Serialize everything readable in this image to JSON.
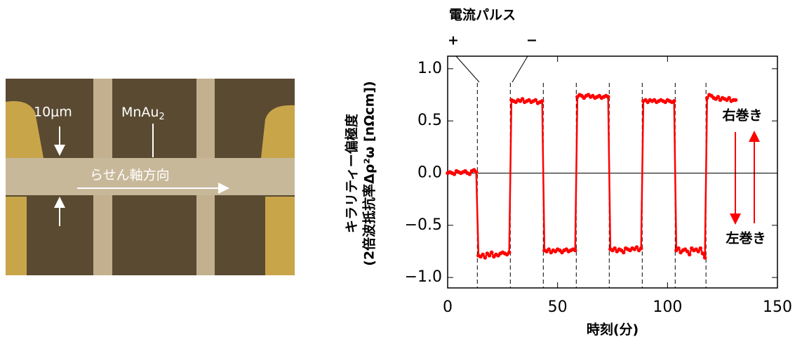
{
  "micrograph": {
    "scale_label": "10μm",
    "material_label": "MnAu",
    "material_subscript": "2",
    "axis_label": "らせん軸方向"
  },
  "chart_data": {
    "type": "line",
    "title": "電流パルス",
    "pulse_signs": [
      "+",
      "−"
    ],
    "ylabel_lines": [
      "キラリティー偏極度",
      "(2倍波抵抗率Δρ²ω [nΩcm])"
    ],
    "xlabel": "時刻(分)",
    "annotations": [
      "右巻き",
      "左巻き"
    ],
    "xlim": [
      0,
      150
    ],
    "xticks": [
      0,
      50,
      100,
      150
    ],
    "ylim": [
      -1.1,
      1.12
    ],
    "yticks": [
      {
        "value": 1,
        "label": "1.0"
      },
      {
        "value": 0.5,
        "label": "0.5"
      },
      {
        "value": 0,
        "label": "0.0"
      },
      {
        "value": -0.5,
        "label": "−0.5"
      },
      {
        "value": -1,
        "label": "−1.0"
      }
    ],
    "pulse_times": [
      13.5,
      28.5,
      43.5,
      58.5,
      73.5,
      88.5,
      103.5,
      117.5
    ],
    "x": [
      0,
      1,
      2,
      3,
      4,
      5,
      6,
      7,
      8,
      9,
      10,
      11,
      12,
      13,
      14,
      15,
      16,
      17,
      18,
      19,
      20,
      21,
      22,
      23,
      24,
      25,
      26,
      27,
      28,
      29,
      30,
      31,
      32,
      33,
      34,
      35,
      36,
      37,
      38,
      39,
      40,
      41,
      42,
      43,
      44,
      45,
      46,
      47,
      48,
      49,
      50,
      51,
      52,
      53,
      54,
      55,
      56,
      57,
      58,
      59,
      60,
      61,
      62,
      63,
      64,
      65,
      66,
      67,
      68,
      69,
      70,
      71,
      72,
      73,
      74,
      75,
      76,
      77,
      78,
      79,
      80,
      81,
      82,
      83,
      84,
      85,
      86,
      87,
      88,
      89,
      90,
      91,
      92,
      93,
      94,
      95,
      96,
      97,
      98,
      99,
      100,
      101,
      102,
      103,
      104,
      105,
      106,
      107,
      108,
      109,
      110,
      111,
      112,
      113,
      114,
      115,
      116,
      117,
      118,
      119,
      120,
      121,
      122,
      123,
      124,
      125,
      126,
      127,
      128,
      129,
      130,
      131
    ],
    "series": [
      {
        "name": "キラリティー偏極度",
        "color": "#ff0000",
        "values": [
          0.0,
          0.01,
          0.0,
          -0.01,
          0.02,
          0.01,
          0.0,
          0.01,
          0.02,
          0.0,
          -0.01,
          0.02,
          0.03,
          0.01,
          -0.79,
          -0.8,
          -0.78,
          -0.81,
          -0.77,
          -0.79,
          -0.76,
          -0.8,
          -0.78,
          -0.79,
          -0.77,
          -0.76,
          -0.77,
          -0.78,
          -0.76,
          0.7,
          0.69,
          0.68,
          0.7,
          0.69,
          0.71,
          0.68,
          0.69,
          0.7,
          0.68,
          0.69,
          0.7,
          0.67,
          0.68,
          0.69,
          -0.74,
          -0.75,
          -0.73,
          -0.76,
          -0.74,
          -0.75,
          -0.73,
          -0.74,
          -0.76,
          -0.74,
          -0.73,
          -0.75,
          -0.74,
          -0.73,
          -0.74,
          0.73,
          0.75,
          0.74,
          0.72,
          0.74,
          0.75,
          0.73,
          0.74,
          0.72,
          0.73,
          0.74,
          0.72,
          0.73,
          0.74,
          0.73,
          -0.73,
          -0.74,
          -0.72,
          -0.75,
          -0.73,
          -0.74,
          -0.76,
          -0.72,
          -0.73,
          -0.74,
          -0.72,
          -0.73,
          -0.71,
          -0.74,
          -0.72,
          0.69,
          0.7,
          0.68,
          0.7,
          0.69,
          0.7,
          0.68,
          0.69,
          0.7,
          0.69,
          0.68,
          0.7,
          0.69,
          0.68,
          0.69,
          -0.74,
          -0.72,
          -0.76,
          -0.74,
          -0.73,
          -0.75,
          -0.78,
          -0.72,
          -0.74,
          -0.73,
          -0.75,
          -0.72,
          -0.77,
          -0.81,
          0.72,
          0.75,
          0.74,
          0.72,
          0.71,
          0.73,
          0.7,
          0.72,
          0.71,
          0.7,
          0.72,
          0.69,
          0.7,
          0.7
        ]
      }
    ]
  }
}
